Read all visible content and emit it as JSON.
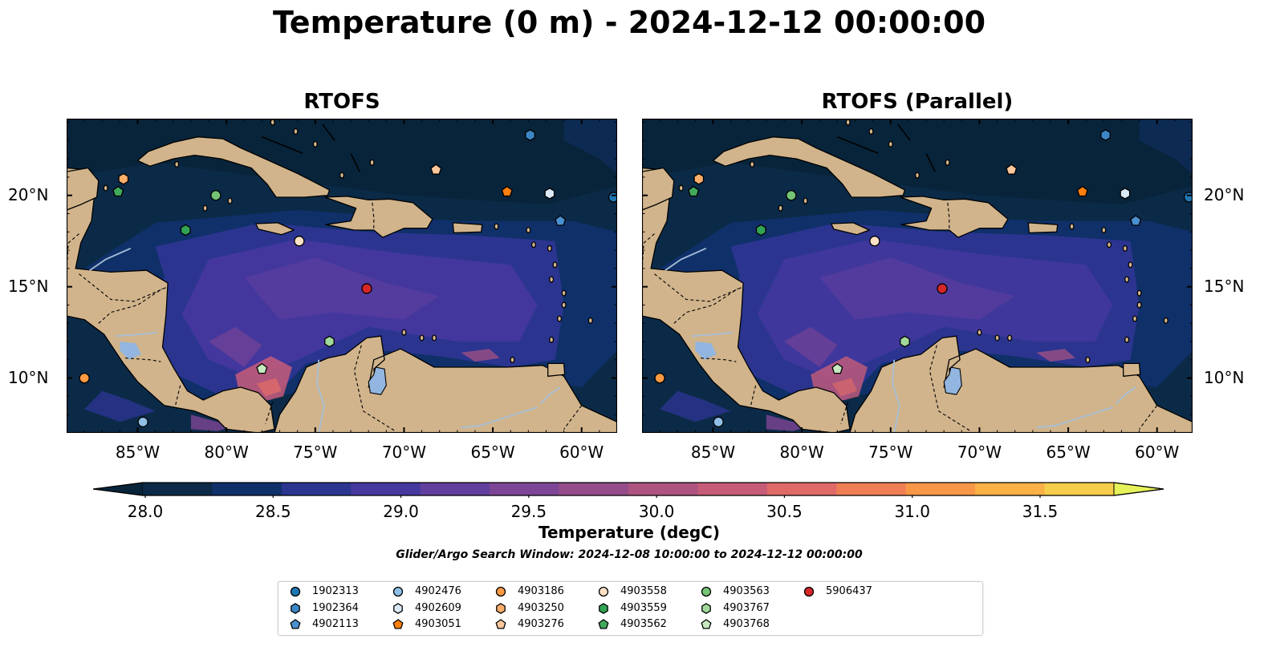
{
  "title": "Temperature (0 m) - 2024-12-12 00:00:00",
  "panels": [
    {
      "title": "RTOFS"
    },
    {
      "title": "RTOFS (Parallel)"
    }
  ],
  "map": {
    "lon_ticks": [
      "85°W",
      "80°W",
      "75°W",
      "70°W",
      "65°W",
      "60°W"
    ],
    "lat_ticks": [
      "20°N",
      "15°N",
      "10°N"
    ],
    "lon_values": [
      -85,
      -80,
      -75,
      -70,
      -65,
      -60
    ],
    "lat_values": [
      20,
      15,
      10
    ],
    "extent": {
      "lon": [
        -89,
        -58
      ],
      "lat": [
        7,
        24.2
      ]
    },
    "colors": {
      "ocean_cold": "#08243a",
      "land": "#d1b48c",
      "lakes": "#93b6e0",
      "rivers": "#a8c0d8"
    }
  },
  "colorbar": {
    "label": "Temperature (degC)",
    "ticks": [
      "28.0",
      "28.5",
      "29.0",
      "29.5",
      "30.0",
      "30.5",
      "31.0",
      "31.5"
    ],
    "min": 28.0,
    "max": 31.5,
    "colors": [
      "#0b2a47",
      "#10306a",
      "#2b3590",
      "#45389f",
      "#623f9f",
      "#7d4595",
      "#954c8a",
      "#ad5481",
      "#c65c78",
      "#df6a68",
      "#ef7e54",
      "#f99748",
      "#fbb146",
      "#f6cd4c"
    ],
    "under_color": "#08243a",
    "over_color": "#e6f25a"
  },
  "search_window": "Glider/Argo Search Window: 2024-12-08 10:00:00 to 2024-12-12 00:00:00",
  "floats": [
    {
      "id": "1902313",
      "lon": -58.2,
      "lat": 19.9,
      "marker": "circle",
      "color": "#1f77b4"
    },
    {
      "id": "1902364",
      "lon": -62.9,
      "lat": 23.3,
      "marker": "hexagon",
      "color": "#3c86c6"
    },
    {
      "id": "4902113",
      "lon": -61.2,
      "lat": 18.6,
      "marker": "pentagon",
      "color": "#4a90d0"
    },
    {
      "id": "4902476",
      "lon": -84.7,
      "lat": 7.6,
      "marker": "circle",
      "color": "#8fbfe6"
    },
    {
      "id": "4902609",
      "lon": -61.8,
      "lat": 20.1,
      "marker": "hexagon",
      "color": "#dbe9f6"
    },
    {
      "id": "4903051",
      "lon": -64.2,
      "lat": 20.2,
      "marker": "pentagon",
      "color": "#ff7f0e"
    },
    {
      "id": "4903186",
      "lon": -88.0,
      "lat": 10.0,
      "marker": "circle",
      "color": "#fd9a44"
    },
    {
      "id": "4903250",
      "lon": -85.8,
      "lat": 20.9,
      "marker": "hexagon",
      "color": "#fdae6b"
    },
    {
      "id": "4903276",
      "lon": -68.2,
      "lat": 21.4,
      "marker": "pentagon",
      "color": "#fdc89d"
    },
    {
      "id": "4903558",
      "lon": -75.9,
      "lat": 17.5,
      "marker": "circle",
      "color": "#fde0c5"
    },
    {
      "id": "4903559",
      "lon": -82.3,
      "lat": 18.1,
      "marker": "hexagon",
      "color": "#31a354"
    },
    {
      "id": "4903562",
      "lon": -86.1,
      "lat": 20.2,
      "marker": "pentagon",
      "color": "#41ab5d"
    },
    {
      "id": "4903563",
      "lon": -80.6,
      "lat": 20.0,
      "marker": "circle",
      "color": "#74c476"
    },
    {
      "id": "4903767",
      "lon": -74.2,
      "lat": 12.0,
      "marker": "hexagon",
      "color": "#a1d99b"
    },
    {
      "id": "4903768",
      "lon": -78.0,
      "lat": 10.5,
      "marker": "pentagon",
      "color": "#c7e9c0"
    },
    {
      "id": "5906437",
      "lon": -72.1,
      "lat": 14.9,
      "marker": "circle",
      "color": "#d62728"
    }
  ]
}
